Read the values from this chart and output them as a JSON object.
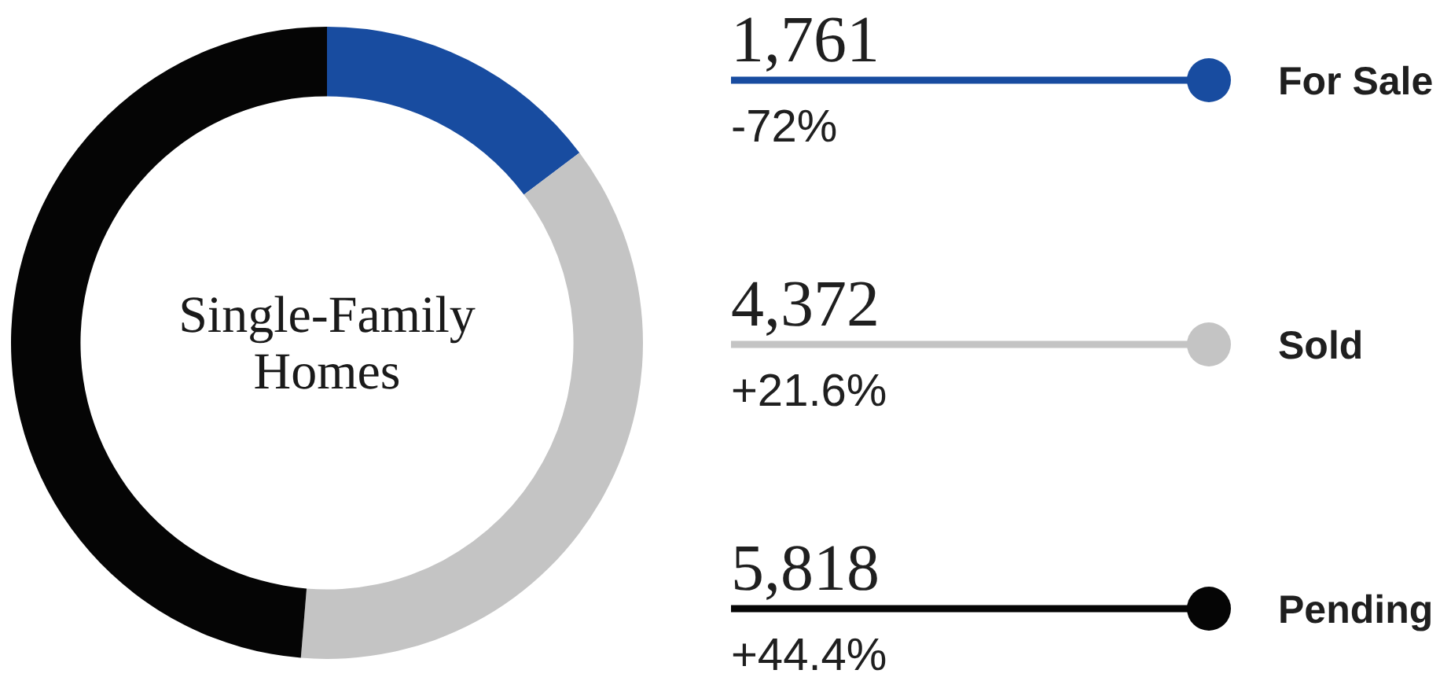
{
  "chart_data": {
    "type": "donut",
    "title": "Single-Family Homes",
    "categories": [
      "For Sale",
      "Sold",
      "Pending"
    ],
    "values": [
      1761,
      4372,
      5818
    ],
    "colors": [
      "#184ca0",
      "#c4c4c4",
      "#050505"
    ],
    "value_labels": [
      "1,761",
      "4,372",
      "5,818"
    ],
    "annotations": [
      "-72%",
      "+21.6%",
      "+44.4%"
    ],
    "legend": "right"
  }
}
